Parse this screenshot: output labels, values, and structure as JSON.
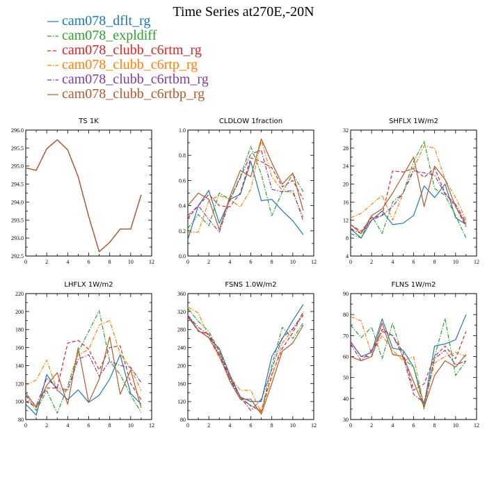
{
  "figure": {
    "title": "Time Series at270E,-20N"
  },
  "legend": [
    {
      "label": "cam078_dflt_rg",
      "color": "#1f77b4",
      "dash": "solid"
    },
    {
      "label": "cam078_expldiff",
      "color": "#2ca02c",
      "dash": "dashdot"
    },
    {
      "label": "cam078_clubb_c6rtm_rg",
      "color": "#d62728",
      "dash": "dash"
    },
    {
      "label": "cam078_clubb_c6rtp_rg",
      "color": "#ff7f0e",
      "dash": "dashdot"
    },
    {
      "label": "cam078_clubb_c6rtbm_rg",
      "color": "#7b3f9e",
      "dash": "dashdot"
    },
    {
      "label": "cam078_clubb_c6rtbp_rg",
      "color": "#b35a2e",
      "dash": "solid"
    }
  ],
  "chart_data": [
    {
      "type": "line",
      "title": "TS   1K",
      "x": [
        0,
        1,
        2,
        3,
        4,
        5,
        6,
        7,
        8,
        9,
        10,
        11
      ],
      "xlim": [
        0,
        12
      ],
      "xticks": [
        "0",
        "2",
        "4",
        "6",
        "8",
        "10",
        "12"
      ],
      "ylim": [
        292.5,
        296.0
      ],
      "yticks": [
        "292.5",
        "293.0",
        "293.5",
        "294.0",
        "294.5",
        "295.0",
        "295.5",
        "296.0"
      ],
      "series": [
        {
          "values": [
            294.95,
            294.88,
            295.48,
            295.73,
            295.45,
            294.7,
            293.6,
            292.62,
            292.88,
            293.25,
            293.25,
            294.2
          ]
        },
        {
          "values": [
            294.95,
            294.88,
            295.48,
            295.73,
            295.45,
            294.7,
            293.6,
            292.62,
            292.88,
            293.25,
            293.25,
            294.2
          ]
        },
        {
          "values": [
            294.95,
            294.88,
            295.48,
            295.73,
            295.45,
            294.7,
            293.6,
            292.62,
            292.88,
            293.25,
            293.25,
            294.2
          ]
        },
        {
          "values": [
            294.95,
            294.88,
            295.48,
            295.73,
            295.45,
            294.7,
            293.6,
            292.62,
            292.88,
            293.25,
            293.25,
            294.2
          ]
        },
        {
          "values": [
            294.95,
            294.88,
            295.48,
            295.73,
            295.45,
            294.7,
            293.6,
            292.62,
            292.88,
            293.25,
            293.25,
            294.2
          ]
        },
        {
          "values": [
            294.95,
            294.88,
            295.48,
            295.73,
            295.45,
            294.7,
            293.6,
            292.62,
            292.88,
            293.25,
            293.25,
            294.2
          ]
        }
      ]
    },
    {
      "type": "line",
      "title": "CLDLOW   1fraction",
      "x": [
        0,
        1,
        2,
        3,
        4,
        5,
        6,
        7,
        8,
        9,
        10,
        11
      ],
      "xlim": [
        0,
        12
      ],
      "xticks": [
        "0",
        "2",
        "4",
        "6",
        "8",
        "10",
        "12"
      ],
      "ylim": [
        0.0,
        1.0
      ],
      "yticks": [
        "0.0",
        "0.2",
        "0.4",
        "0.6",
        "0.8",
        "1.0"
      ],
      "series": [
        {
          "values": [
            0.13,
            0.4,
            0.52,
            0.26,
            0.45,
            0.49,
            0.75,
            0.44,
            0.45,
            0.36,
            0.28,
            0.17
          ]
        },
        {
          "values": [
            0.22,
            0.33,
            0.24,
            0.5,
            0.45,
            0.63,
            0.87,
            0.65,
            0.32,
            0.51,
            0.65,
            0.51
          ]
        },
        {
          "values": [
            0.3,
            0.4,
            0.49,
            0.4,
            0.39,
            0.5,
            0.78,
            0.75,
            0.7,
            0.55,
            0.6,
            0.45
          ]
        },
        {
          "values": [
            0.19,
            0.19,
            0.44,
            0.48,
            0.45,
            0.39,
            0.53,
            0.92,
            0.63,
            0.52,
            0.5,
            0.31
          ]
        },
        {
          "values": [
            0.32,
            0.4,
            0.29,
            0.19,
            0.44,
            0.62,
            0.81,
            0.84,
            0.53,
            0.51,
            0.52,
            0.28
          ]
        },
        {
          "values": [
            0.4,
            0.5,
            0.45,
            0.21,
            0.47,
            0.68,
            0.63,
            0.93,
            0.74,
            0.57,
            0.66,
            0.36
          ]
        }
      ]
    },
    {
      "type": "line",
      "title": "SHFLX   1W/m2",
      "x": [
        0,
        1,
        2,
        3,
        4,
        5,
        6,
        7,
        8,
        9,
        10,
        11
      ],
      "xlim": [
        0,
        12
      ],
      "xticks": [
        "0",
        "2",
        "4",
        "6",
        "8",
        "10",
        "12"
      ],
      "ylim": [
        4,
        32
      ],
      "yticks": [
        "4",
        "8",
        "12",
        "16",
        "20",
        "24",
        "28",
        "32"
      ],
      "series": [
        {
          "values": [
            10,
            8,
            12,
            14,
            11,
            11.3,
            13,
            19.6,
            17,
            20,
            12.5,
            11
          ]
        },
        {
          "values": [
            9,
            8,
            13,
            9,
            16,
            18,
            25,
            29.5,
            19,
            17.5,
            13,
            8
          ]
        },
        {
          "values": [
            11,
            9.5,
            12.5,
            13,
            22.9,
            22.7,
            23.5,
            21.5,
            23.5,
            18,
            15,
            10.5
          ]
        },
        {
          "values": [
            12.5,
            13.5,
            15.5,
            17.5,
            12,
            18,
            23.5,
            28.5,
            28,
            21,
            17,
            12
          ]
        },
        {
          "values": [
            10,
            9,
            12,
            13,
            15,
            18,
            23,
            22.5,
            22,
            17.8,
            15.5,
            11.5
          ]
        },
        {
          "values": [
            11,
            9,
            13,
            14.5,
            18,
            22,
            26,
            15,
            24,
            21,
            15,
            11
          ]
        }
      ]
    },
    {
      "type": "line",
      "title": "LHFLX   1W/m2",
      "x": [
        0,
        1,
        2,
        3,
        4,
        5,
        6,
        7,
        8,
        9,
        10,
        11
      ],
      "xlim": [
        0,
        12
      ],
      "xticks": [
        "0",
        "2",
        "4",
        "6",
        "8",
        "10",
        "12"
      ],
      "ylim": [
        80,
        220
      ],
      "yticks": [
        "80",
        "100",
        "120",
        "140",
        "160",
        "180",
        "200",
        "220"
      ],
      "series": [
        {
          "values": [
            97,
            85,
            130,
            113,
            102,
            113,
            99,
            107,
            125,
            152,
            109,
            97
          ]
        },
        {
          "values": [
            107,
            90,
            112,
            87,
            117,
            155,
            178,
            201,
            145,
            130,
            107,
            88
          ]
        },
        {
          "values": [
            100,
            94,
            115,
            115,
            165,
            168,
            158,
            135,
            160,
            162,
            120,
            102
          ]
        },
        {
          "values": [
            118,
            124,
            146,
            112,
            112,
            152,
            158,
            185,
            190,
            153,
            137,
            112
          ]
        },
        {
          "values": [
            107,
            95,
            126,
            115,
            113,
            147,
            152,
            128,
            145,
            140,
            138,
            121
          ]
        },
        {
          "values": [
            110,
            93,
            118,
            132,
            97,
            160,
            99,
            125,
            172,
            108,
            135,
            93
          ]
        }
      ]
    },
    {
      "type": "line",
      "title": "FSNS   1.0W/m2",
      "x": [
        0,
        1,
        2,
        3,
        4,
        5,
        6,
        7,
        8,
        9,
        10,
        11
      ],
      "xlim": [
        0,
        12
      ],
      "xticks": [
        "0",
        "2",
        "4",
        "6",
        "8",
        "10",
        "12"
      ],
      "ylim": [
        80,
        360
      ],
      "yticks": [
        "80",
        "120",
        "160",
        "200",
        "240",
        "280",
        "320",
        "360"
      ],
      "series": [
        {
          "values": [
            312,
            278,
            262,
            238,
            180,
            130,
            120,
            120,
            220,
            260,
            300,
            336
          ]
        },
        {
          "values": [
            327,
            298,
            276,
            232,
            170,
            125,
            112,
            96,
            200,
            285,
            260,
            295
          ]
        },
        {
          "values": [
            310,
            276,
            270,
            232,
            175,
            130,
            110,
            100,
            180,
            238,
            273,
            318
          ]
        },
        {
          "values": [
            330,
            317,
            262,
            217,
            175,
            145,
            145,
            95,
            175,
            250,
            280,
            320
          ]
        },
        {
          "values": [
            312,
            285,
            268,
            225,
            172,
            130,
            100,
            125,
            192,
            262,
            282,
            312
          ]
        },
        {
          "values": [
            308,
            278,
            262,
            222,
            165,
            125,
            125,
            92,
            160,
            232,
            250,
            290
          ]
        }
      ]
    },
    {
      "type": "line",
      "title": "FLNS   1W/m2",
      "x": [
        0,
        1,
        2,
        3,
        4,
        5,
        6,
        7,
        8,
        9,
        10,
        11
      ],
      "xlim": [
        0,
        12
      ],
      "xticks": [
        "0",
        "2",
        "4",
        "6",
        "8",
        "10",
        "12"
      ],
      "ylim": [
        30,
        90
      ],
      "yticks": [
        "30",
        "40",
        "50",
        "60",
        "70",
        "80",
        "90"
      ],
      "series": [
        {
          "values": [
            67,
            60,
            62,
            78,
            64,
            63,
            55,
            37,
            65,
            66,
            68,
            80
          ]
        },
        {
          "values": [
            75,
            69,
            74,
            59,
            76,
            59,
            55,
            35,
            60,
            78,
            51,
            58
          ]
        },
        {
          "values": [
            67,
            60,
            60,
            73,
            70,
            62,
            44,
            47,
            60,
            65,
            59,
            72
          ]
        },
        {
          "values": [
            79,
            77,
            61,
            70,
            63,
            58,
            60,
            36,
            57,
            60,
            62,
            60
          ]
        },
        {
          "values": [
            66,
            58,
            63,
            72,
            70,
            60,
            42,
            38,
            59,
            63,
            56,
            58
          ]
        },
        {
          "values": [
            60,
            58,
            60,
            76,
            61,
            60,
            48,
            36,
            51,
            58,
            55,
            61
          ]
        }
      ]
    }
  ]
}
